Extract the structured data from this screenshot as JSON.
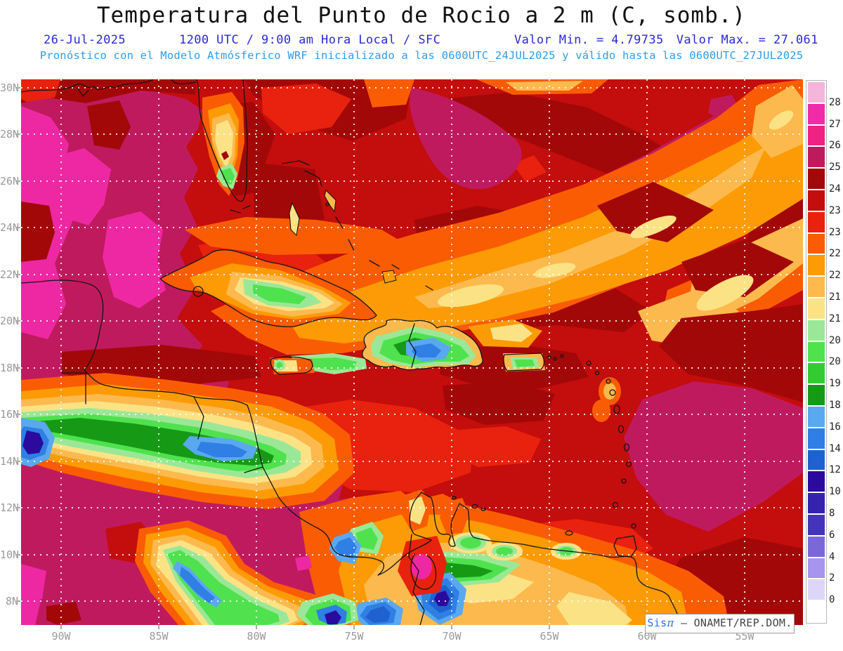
{
  "header": {
    "title": "Temperatura del Punto de Rocio a 2 m (C, somb.)",
    "date": "26-Jul-2025",
    "time": "1200 UTC / 9:00 am Hora Local / SFC",
    "min": "Valor Min. = 4.79735",
    "max": "Valor Max. = 27.061",
    "forecast": "Pronóstico con el Modelo Atmósferico WRF inicializado a las 0600UTC_24JUL2025 y válido hasta las  0600UTC_27JUL2025"
  },
  "stats": {
    "value_min": 4.79735,
    "value_max": 27.061,
    "units": "C"
  },
  "axes": {
    "lat": [
      "30N",
      "28N",
      "26N",
      "24N",
      "22N",
      "20N",
      "18N",
      "16N",
      "14N",
      "12N",
      "10N",
      "8N"
    ],
    "lon": [
      "90W",
      "85W",
      "80W",
      "75W",
      "70W",
      "65W",
      "60W",
      "55W"
    ]
  },
  "colorbar": {
    "ticks": [
      "28",
      "27",
      "26",
      "25",
      "24.5",
      "23.5",
      "23",
      "22.5",
      "22",
      "21.5",
      "21",
      "20.5",
      "20",
      "19",
      "18",
      "16",
      "14",
      "12",
      "10",
      "8",
      "6",
      "4",
      "2",
      "0"
    ],
    "colors": [
      "#f5b5da",
      "#ee2ca8",
      "#ed2283",
      "#c01a5f",
      "#a30808",
      "#c40d0d",
      "#e8220e",
      "#fa5c04",
      "#fc9b06",
      "#fcb94e",
      "#fbe285",
      "#9ae897",
      "#4fe24e",
      "#33cb33",
      "#169a16",
      "#5aa8f0",
      "#2f7fe4",
      "#1f62cf",
      "#2b0b9e",
      "#3522ad",
      "#4334bb",
      "#7b68d8",
      "#a694ee",
      "#ded6f8",
      "#ffffff"
    ]
  },
  "attribution": {
    "prefix": "Sis",
    "pi": "π",
    "text": "– ONAMET/REP.DOM."
  }
}
